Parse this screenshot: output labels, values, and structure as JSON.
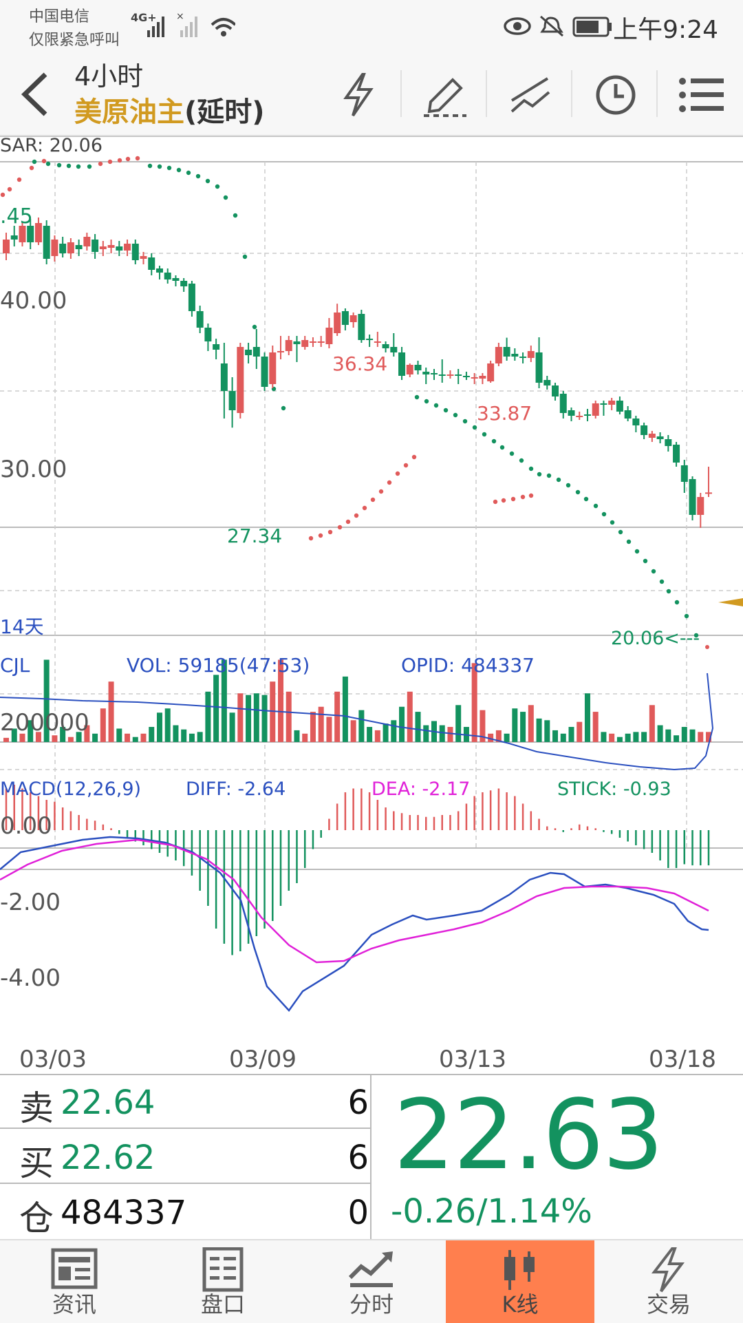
{
  "status_bar": {
    "carrier_line1": "中国电信",
    "carrier_line2": "仅限紧急呼叫",
    "network": "4G+",
    "time": "上午9:24"
  },
  "header": {
    "period": "4小时",
    "symbol": "美原油主",
    "delay_note": "(延时)",
    "buttons": [
      "lightning-icon",
      "pencil-icon",
      "line-tool-icon",
      "clock-icon",
      "menu-icon"
    ]
  },
  "chart": {
    "sar_label": "SAR: 20.06",
    "y_labels": [
      ".45",
      "40.00",
      "30.00"
    ],
    "range_label": "14天",
    "high_label_1": "36.34",
    "high_label_2": "33.87",
    "low_label": "27.34",
    "current_label": "20.06<---",
    "vol_title": "CJL",
    "vol_value": "VOL: 59185(47:53)",
    "opid_value": "OPID: 484337",
    "vol_y_label": "200000",
    "macd_title": "MACD(12,26,9)",
    "diff_value": "DIFF: -2.64",
    "dea_value": "DEA: -2.17",
    "stick_value": "STICK: -0.93",
    "macd_y_labels": [
      "0.00",
      "-2.00",
      "-4.00"
    ],
    "x_labels": [
      "03/03",
      "03/09",
      "03/13",
      "03/18"
    ]
  },
  "quote": {
    "sell_label": "卖",
    "sell_price": "22.64",
    "sell_vol": "6",
    "buy_label": "买",
    "buy_price": "22.62",
    "buy_vol": "6",
    "oi_label": "仓",
    "oi_value": "484337",
    "oi_change": "0",
    "last_price": "22.63",
    "change": "-0.26/1.14%"
  },
  "tabs": [
    {
      "label": "资讯",
      "icon": "news-icon"
    },
    {
      "label": "盘口",
      "icon": "order-book-icon"
    },
    {
      "label": "分时",
      "icon": "intraday-icon"
    },
    {
      "label": "K线",
      "icon": "candlestick-icon",
      "active": true
    },
    {
      "label": "交易",
      "icon": "trade-icon"
    }
  ],
  "colors": {
    "up": "#e05a5a",
    "down": "#13925f",
    "diff_line": "#2a4fbf",
    "dea_line": "#e020d8",
    "symbol": "#d19a20",
    "active_tab": "#ff7f4e",
    "current_arrow": "#d19a20"
  },
  "chart_data": {
    "type": "candlestick",
    "x_labels": [
      "03/03",
      "03/09",
      "03/13",
      "03/18"
    ],
    "price_gridlines": [
      40.0,
      30.0
    ],
    "sar": 20.06,
    "high_1": 36.34,
    "high_2": 33.87,
    "low": 27.34,
    "current": 20.06,
    "last_price": 22.63,
    "volume_gridline": 200000,
    "macd_gridlines": [
      0.0,
      -2.0,
      -4.0
    ],
    "diff": -2.64,
    "dea": -2.17,
    "stick": -0.93
  }
}
